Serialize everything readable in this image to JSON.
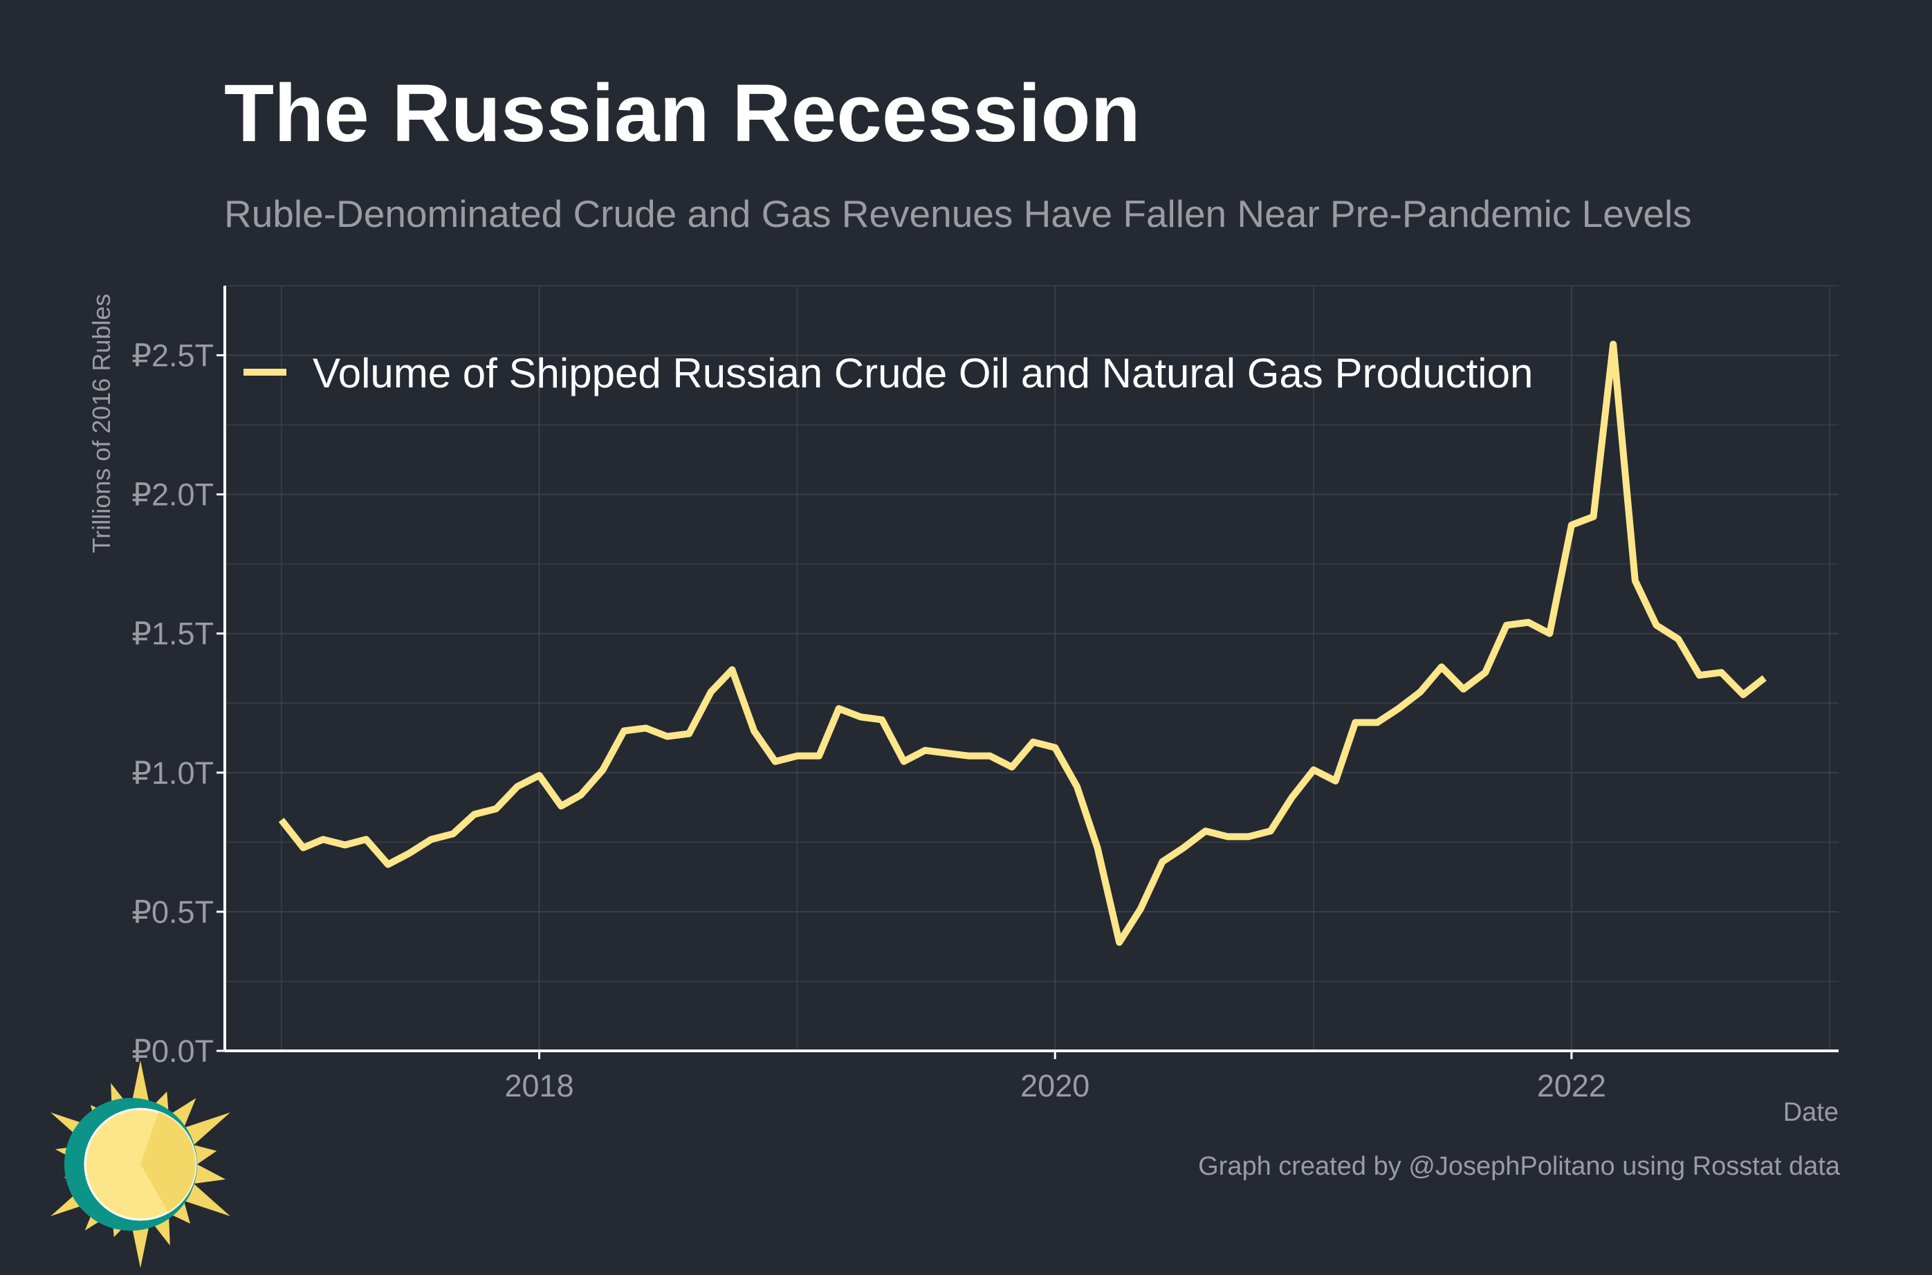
{
  "title": "The Russian Recession",
  "subtitle": "Ruble-Denominated Crude and Gas Revenues Have Fallen Near Pre-Pandemic Levels",
  "caption": "Graph created by @JosephPolitano using Rosstat data",
  "logo_icon": "sun-logo-icon",
  "colors": {
    "background": "#252932",
    "line": "#fde68a",
    "grid": "#3b3f48",
    "axis": "#ffffff",
    "muted_text": "#9a9ca3",
    "logo_teal": "#0d9488",
    "logo_yellow": "#fde68a",
    "logo_ray": "#f3d663"
  },
  "chart_data": {
    "type": "line",
    "xlabel": "Date",
    "ylabel": "Trillions of 2016 Rubles",
    "ylim": [
      0,
      2.75
    ],
    "xlim": [
      "2016-10-13",
      "2023-01-14"
    ],
    "y_ticks": [
      0,
      0.5,
      1.0,
      1.5,
      2.0,
      2.5
    ],
    "y_tick_labels": [
      "₽0.0T",
      "₽0.5T",
      "₽1.0T",
      "₽1.5T",
      "₽2.0T",
      "₽2.5T"
    ],
    "x_ticks": [
      "2018-01-01",
      "2020-01-01",
      "2022-01-01"
    ],
    "x_tick_labels": [
      "2018",
      "2020",
      "2022"
    ],
    "x_minor_ticks": [
      "2017-01-01",
      "2019-01-01",
      "2021-01-01",
      "2023-01-01"
    ],
    "grid": true,
    "legend_position": "top-left",
    "series": [
      {
        "name": "Volume of Shipped Russian Crude Oil and Natural Gas Production",
        "x": [
          "2017-01",
          "2017-02",
          "2017-03",
          "2017-04",
          "2017-05",
          "2017-06",
          "2017-07",
          "2017-08",
          "2017-09",
          "2017-10",
          "2017-11",
          "2017-12",
          "2018-01",
          "2018-02",
          "2018-03",
          "2018-04",
          "2018-05",
          "2018-06",
          "2018-07",
          "2018-08",
          "2018-09",
          "2018-10",
          "2018-11",
          "2018-12",
          "2019-01",
          "2019-02",
          "2019-03",
          "2019-04",
          "2019-05",
          "2019-06",
          "2019-07",
          "2019-08",
          "2019-09",
          "2019-10",
          "2019-11",
          "2019-12",
          "2020-01",
          "2020-02",
          "2020-03",
          "2020-04",
          "2020-05",
          "2020-06",
          "2020-07",
          "2020-08",
          "2020-09",
          "2020-10",
          "2020-11",
          "2020-12",
          "2021-01",
          "2021-02",
          "2021-03",
          "2021-04",
          "2021-05",
          "2021-06",
          "2021-07",
          "2021-08",
          "2021-09",
          "2021-10",
          "2021-11",
          "2021-12",
          "2022-01",
          "2022-02",
          "2022-03",
          "2022-04",
          "2022-05",
          "2022-06",
          "2022-07",
          "2022-08",
          "2022-09",
          "2022-10"
        ],
        "values": [
          0.83,
          0.73,
          0.76,
          0.74,
          0.76,
          0.67,
          0.71,
          0.76,
          0.78,
          0.85,
          0.87,
          0.95,
          0.99,
          0.88,
          0.92,
          1.01,
          1.15,
          1.16,
          1.13,
          1.14,
          1.29,
          1.37,
          1.15,
          1.04,
          1.06,
          1.06,
          1.23,
          1.2,
          1.19,
          1.04,
          1.08,
          1.07,
          1.06,
          1.06,
          1.02,
          1.11,
          1.09,
          0.95,
          0.73,
          0.39,
          0.51,
          0.68,
          0.73,
          0.79,
          0.77,
          0.77,
          0.79,
          0.91,
          1.01,
          0.97,
          1.18,
          1.18,
          1.23,
          1.29,
          1.38,
          1.3,
          1.36,
          1.53,
          1.54,
          1.5,
          1.89,
          1.92,
          2.54,
          1.69,
          1.53,
          1.48,
          1.35,
          1.36,
          1.28,
          1.34
        ]
      }
    ]
  }
}
